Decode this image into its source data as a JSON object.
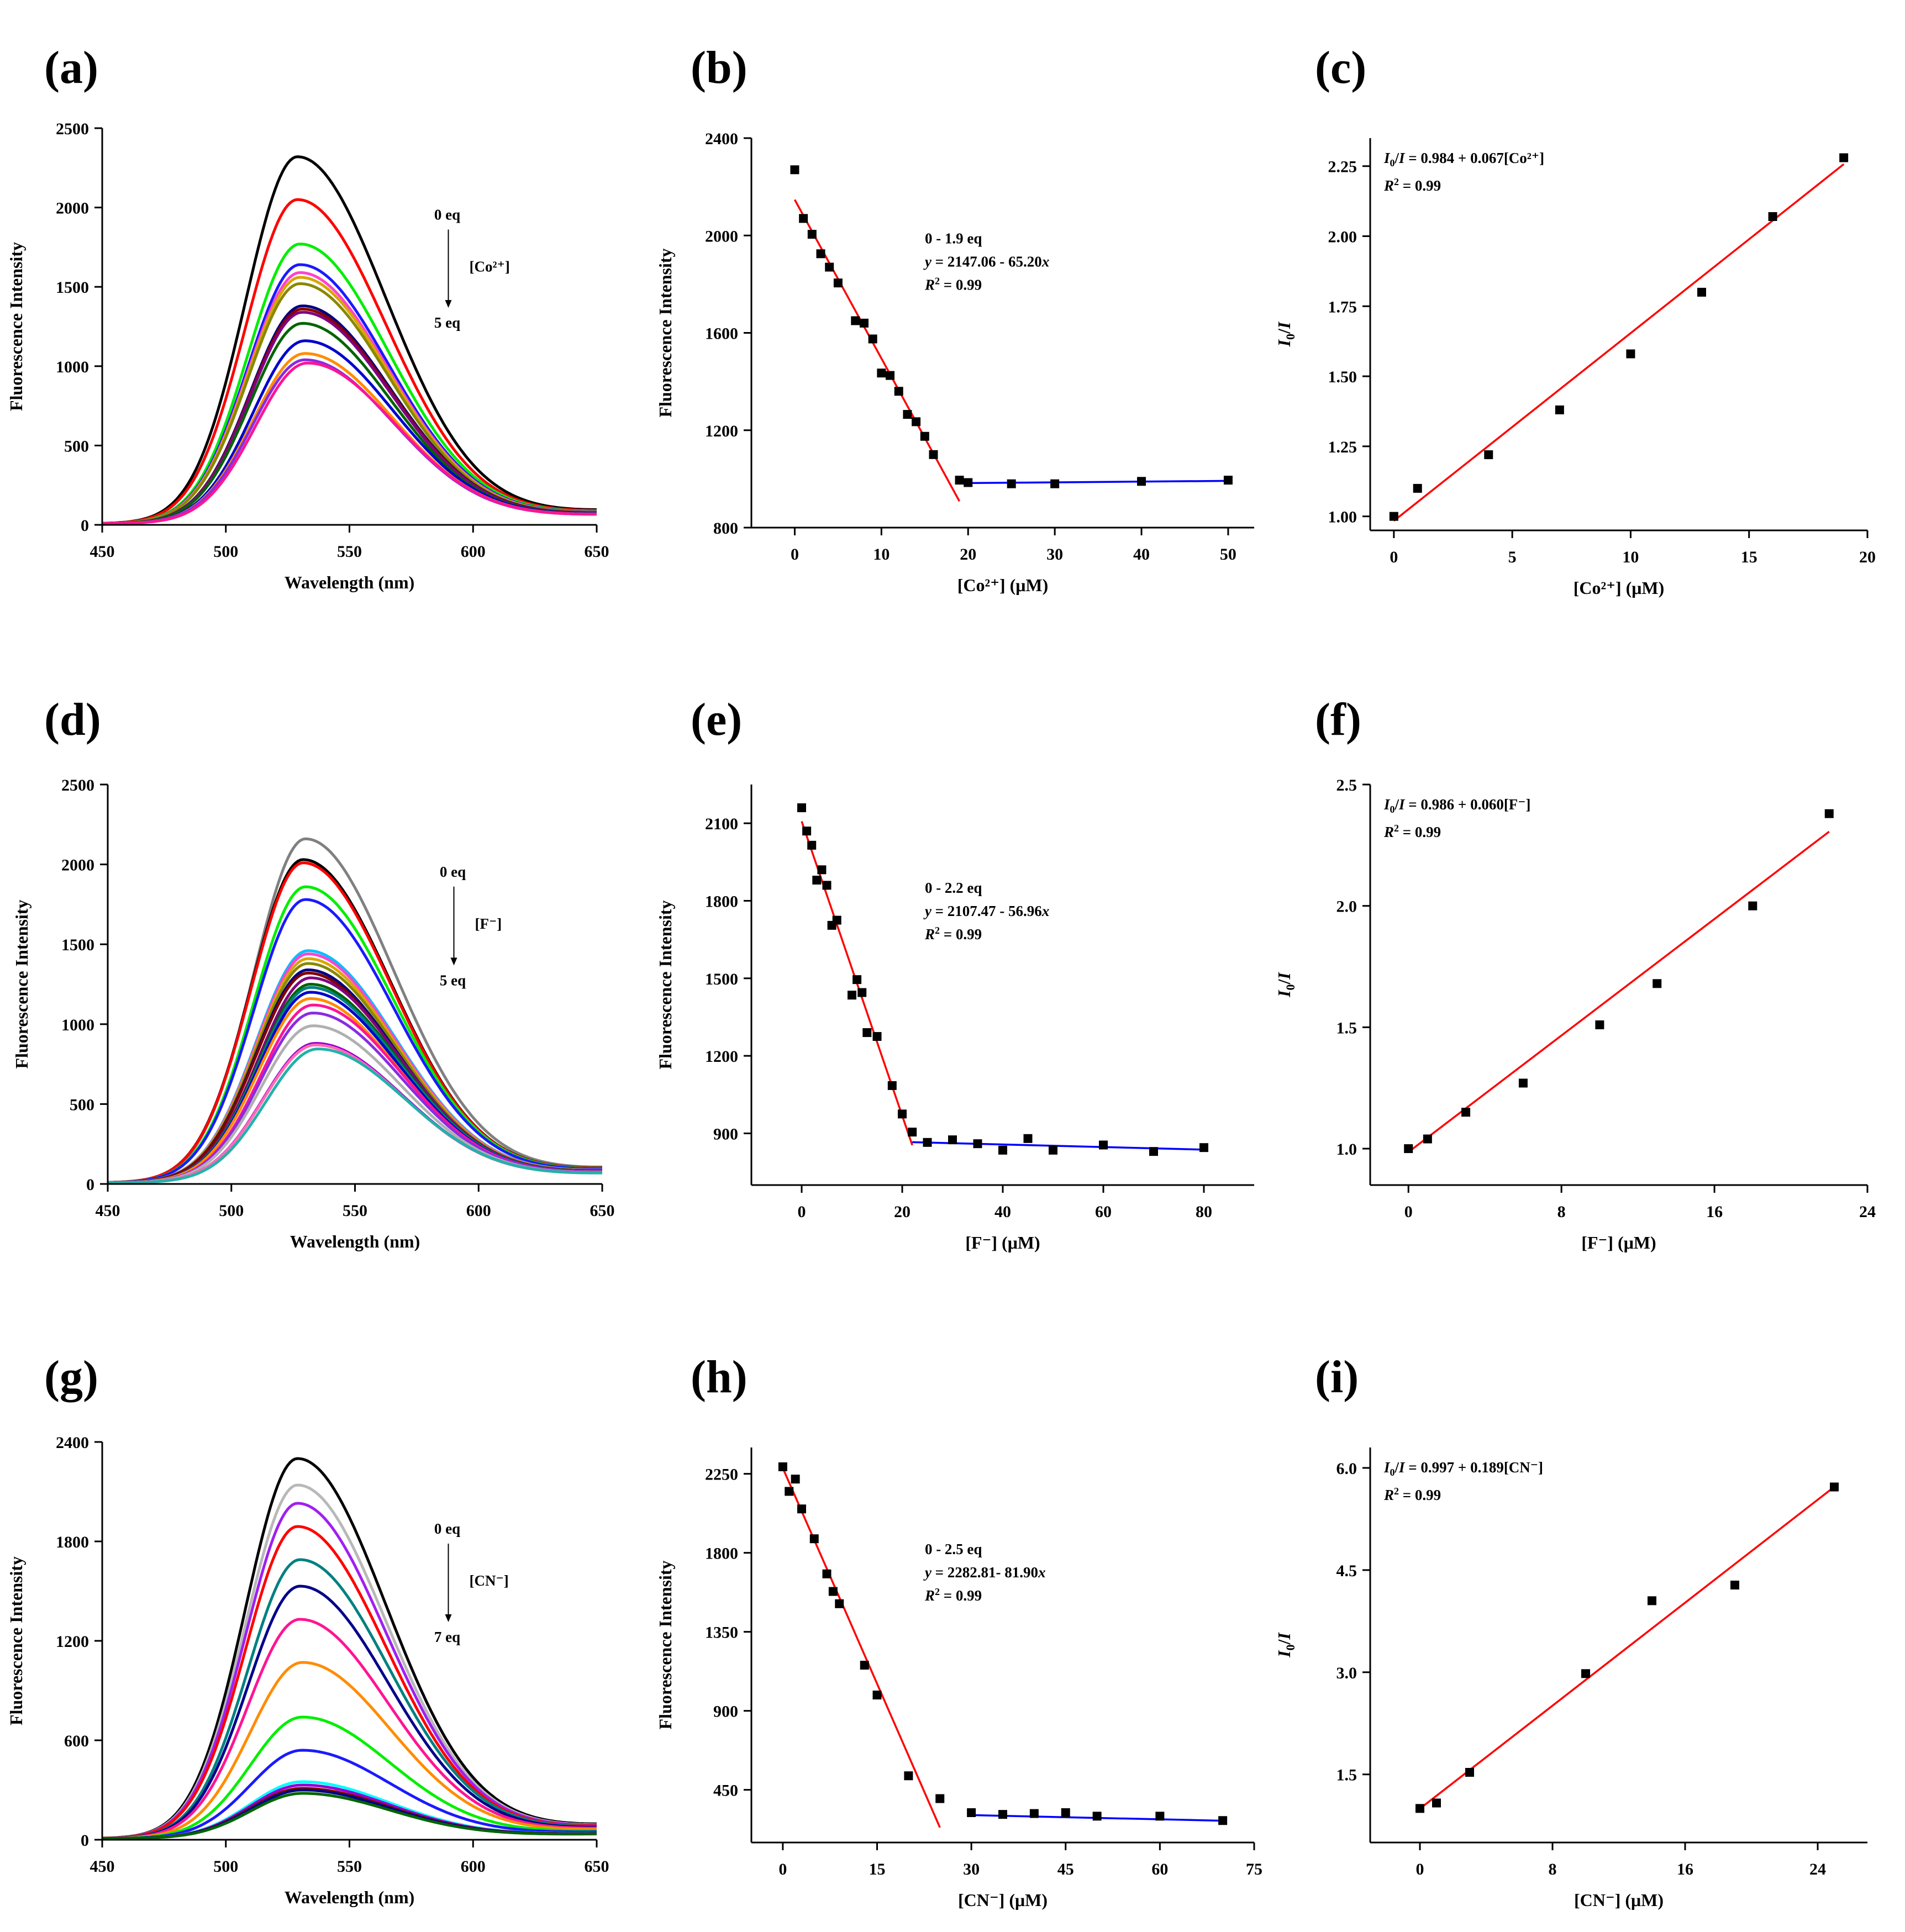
{
  "figure": "Fluorescence titration spectra, calibration plots and Stern-Volmer plots for Co2+, F- and CN-",
  "chart_data": [
    {
      "id": "a",
      "panel_label": "(a)",
      "type": "line",
      "xlabel": "Wavelength (nm)",
      "ylabel": "Fluorescence Intensity",
      "xlim": [
        450,
        650
      ],
      "ylim": [
        0,
        2500
      ],
      "xticks": [
        450,
        500,
        550,
        600,
        650
      ],
      "yticks": [
        0,
        500,
        1000,
        1500,
        2000,
        2500
      ],
      "titration": {
        "start": "0 eq",
        "end": "5 eq",
        "analyte": "[Co²⁺]"
      },
      "series": [
        {
          "name": "0 eq",
          "color": "#000000",
          "peak_nm": 529,
          "peak": 2320,
          "end_value": 80
        },
        {
          "name": "s2",
          "color": "#ff0000",
          "peak_nm": 529,
          "peak": 2050,
          "end_value": 76
        },
        {
          "name": "s3",
          "color": "#00ee00",
          "peak_nm": 530,
          "peak": 1770,
          "end_value": 72
        },
        {
          "name": "s4",
          "color": "#1a1aff",
          "peak_nm": 530,
          "peak": 1640,
          "end_value": 70
        },
        {
          "name": "s5",
          "color": "#ff44cc",
          "peak_nm": 530,
          "peak": 1590,
          "end_value": 68
        },
        {
          "name": "s6",
          "color": "#d9a500",
          "peak_nm": 530,
          "peak": 1560,
          "end_value": 67
        },
        {
          "name": "s7",
          "color": "#888800",
          "peak_nm": 530,
          "peak": 1520,
          "end_value": 66
        },
        {
          "name": "s8",
          "color": "#000080",
          "peak_nm": 531,
          "peak": 1380,
          "end_value": 64
        },
        {
          "name": "s9",
          "color": "#8b0000",
          "peak_nm": 531,
          "peak": 1360,
          "end_value": 63
        },
        {
          "name": "s10",
          "color": "#800080",
          "peak_nm": 531,
          "peak": 1340,
          "end_value": 62
        },
        {
          "name": "s11",
          "color": "#006400",
          "peak_nm": 531,
          "peak": 1270,
          "end_value": 60
        },
        {
          "name": "s12",
          "color": "#0000cd",
          "peak_nm": 532,
          "peak": 1160,
          "end_value": 58
        },
        {
          "name": "s13",
          "color": "#ff8c00",
          "peak_nm": 532,
          "peak": 1080,
          "end_value": 56
        },
        {
          "name": "s14",
          "color": "#8a2be2",
          "peak_nm": 532,
          "peak": 1040,
          "end_value": 55
        },
        {
          "name": "5 eq",
          "color": "#ff1493",
          "peak_nm": 533,
          "peak": 1020,
          "end_value": 54
        }
      ]
    },
    {
      "id": "b",
      "panel_label": "(b)",
      "type": "scatter",
      "xlabel": "[Co²⁺] (μM)",
      "ylabel": "Fluorescence Intensity",
      "xlim": [
        -5,
        53
      ],
      "ylim": [
        800,
        2400
      ],
      "xticks": [
        0,
        10,
        20,
        30,
        40,
        50
      ],
      "yticks": [
        800,
        1200,
        1600,
        2000,
        2400
      ],
      "x": [
        0,
        1,
        2,
        3,
        4,
        5,
        7,
        8,
        9,
        10,
        11,
        12,
        13,
        14,
        15,
        16,
        19,
        20,
        25,
        30,
        40,
        50
      ],
      "y": [
        2270,
        2070,
        2005,
        1925,
        1870,
        1805,
        1650,
        1640,
        1575,
        1435,
        1425,
        1360,
        1265,
        1235,
        1175,
        1100,
        995,
        985,
        980,
        980,
        990,
        995
      ],
      "fits": [
        {
          "color": "#ff0000",
          "intercept": 2147.06,
          "slope": -65.2,
          "x_range": [
            0,
            19
          ]
        },
        {
          "color": "#0000ff",
          "intercept": 977,
          "slope": 0.3,
          "x_range": [
            19,
            50
          ]
        }
      ],
      "annotations": {
        "range": "0 - 1.9 eq",
        "eq_prefix": "y",
        "eq_body": " = 2147.06 - 65.20",
        "eq_var": "x",
        "r2_prefix": "R",
        "r2_sup": "2",
        "r2_value": " = 0.99"
      }
    },
    {
      "id": "c",
      "panel_label": "(c)",
      "type": "scatter",
      "xlabel": "[Co²⁺] (μM)",
      "ylabel": "I0/I",
      "xlim": [
        -1,
        20
      ],
      "ylim": [
        0.95,
        2.35
      ],
      "xticks": [
        0,
        5,
        10,
        15,
        20
      ],
      "yticks": [
        1.0,
        1.25,
        1.5,
        1.75,
        2.0,
        2.25
      ],
      "ytick_labels": [
        "1.00",
        "1.25",
        "1.50",
        "1.75",
        "2.00",
        "2.25"
      ],
      "x": [
        0,
        1,
        4,
        7,
        10,
        13,
        16,
        19
      ],
      "y": [
        1.0,
        1.1,
        1.22,
        1.38,
        1.58,
        1.8,
        2.07,
        2.28
      ],
      "fits": [
        {
          "color": "#ff0000",
          "intercept": 0.984,
          "slope": 0.067,
          "x_range": [
            0,
            19
          ]
        }
      ],
      "annotations": {
        "eq": " = 0.984 + 0.067[Co²⁺]",
        "r2_prefix": "R",
        "r2_sup": "2",
        "r2_value": " = 0.99"
      }
    },
    {
      "id": "d",
      "panel_label": "(d)",
      "type": "line",
      "xlabel": "Wavelength (nm)",
      "ylabel": "Fluorescence Intensity",
      "xlim": [
        450,
        650
      ],
      "ylim": [
        0,
        2500
      ],
      "xticks": [
        450,
        500,
        550,
        600,
        650
      ],
      "yticks": [
        0,
        500,
        1000,
        1500,
        2000,
        2500
      ],
      "titration": {
        "start": "0 eq",
        "end": "5 eq",
        "analyte": "[F⁻]"
      },
      "series": [
        {
          "name": "s1",
          "color": "#808080",
          "peak_nm": 530,
          "peak": 2160,
          "end_value": 90
        },
        {
          "name": "0 eq",
          "color": "#000000",
          "peak_nm": 529,
          "peak": 2030,
          "end_value": 86
        },
        {
          "name": "s3",
          "color": "#ff0000",
          "peak_nm": 529,
          "peak": 2010,
          "end_value": 85
        },
        {
          "name": "s4",
          "color": "#00ee00",
          "peak_nm": 530,
          "peak": 1860,
          "end_value": 82
        },
        {
          "name": "s5",
          "color": "#1a1aff",
          "peak_nm": 530,
          "peak": 1780,
          "end_value": 80
        },
        {
          "name": "s6",
          "color": "#00bfff",
          "peak_nm": 531,
          "peak": 1460,
          "end_value": 74
        },
        {
          "name": "s7",
          "color": "#ff44cc",
          "peak_nm": 531,
          "peak": 1440,
          "end_value": 73
        },
        {
          "name": "s8",
          "color": "#d9a500",
          "peak_nm": 531,
          "peak": 1410,
          "end_value": 72
        },
        {
          "name": "s9",
          "color": "#888800",
          "peak_nm": 531,
          "peak": 1380,
          "end_value": 71
        },
        {
          "name": "s10",
          "color": "#000080",
          "peak_nm": 531,
          "peak": 1340,
          "end_value": 70
        },
        {
          "name": "s11",
          "color": "#800000",
          "peak_nm": 531,
          "peak": 1320,
          "end_value": 69
        },
        {
          "name": "s12",
          "color": "#800080",
          "peak_nm": 532,
          "peak": 1290,
          "end_value": 68
        },
        {
          "name": "s13",
          "color": "#006400",
          "peak_nm": 532,
          "peak": 1250,
          "end_value": 67
        },
        {
          "name": "s14",
          "color": "#008080",
          "peak_nm": 532,
          "peak": 1230,
          "end_value": 66
        },
        {
          "name": "s15",
          "color": "#0000cd",
          "peak_nm": 532,
          "peak": 1200,
          "end_value": 65
        },
        {
          "name": "s16",
          "color": "#ff8c00",
          "peak_nm": 532,
          "peak": 1160,
          "end_value": 64
        },
        {
          "name": "s17",
          "color": "#ff1493",
          "peak_nm": 533,
          "peak": 1120,
          "end_value": 63
        },
        {
          "name": "s18",
          "color": "#8a2be2",
          "peak_nm": 533,
          "peak": 1070,
          "end_value": 62
        },
        {
          "name": "s19",
          "color": "#b0b0b0",
          "peak_nm": 533,
          "peak": 990,
          "end_value": 60
        },
        {
          "name": "s20",
          "color": "#9400d3",
          "peak_nm": 534,
          "peak": 880,
          "end_value": 58
        },
        {
          "name": "s21",
          "color": "#ff69b4",
          "peak_nm": 534,
          "peak": 870,
          "end_value": 57
        },
        {
          "name": "5 eq",
          "color": "#20b2aa",
          "peak_nm": 535,
          "peak": 845,
          "end_value": 56
        }
      ]
    },
    {
      "id": "e",
      "panel_label": "(e)",
      "type": "scatter",
      "xlabel": "[F⁻] (μM)",
      "ylabel": "Fluorescence Intensity",
      "xlim": [
        -10,
        90
      ],
      "ylim": [
        700,
        2250
      ],
      "xticks": [
        0,
        20,
        40,
        60,
        80
      ],
      "yticks": [
        900,
        1200,
        1500,
        1800,
        2100
      ],
      "x": [
        0,
        1,
        2,
        3,
        4,
        5,
        6,
        7,
        10,
        11,
        12,
        13,
        15,
        18,
        20,
        22,
        25,
        30,
        35,
        40,
        45,
        50,
        60,
        70,
        80
      ],
      "y": [
        2160,
        2070,
        2015,
        1880,
        1920,
        1860,
        1705,
        1725,
        1435,
        1495,
        1445,
        1290,
        1275,
        1085,
        975,
        905,
        865,
        875,
        860,
        835,
        880,
        835,
        855,
        830,
        845
      ],
      "fits": [
        {
          "color": "#ff0000",
          "intercept": 2107.47,
          "slope": -56.96,
          "x_range": [
            0,
            22
          ]
        },
        {
          "color": "#0000ff",
          "intercept": 877,
          "slope": -0.5,
          "x_range": [
            22,
            80
          ]
        }
      ],
      "annotations": {
        "range": "0 - 2.2 eq",
        "eq_prefix": "y",
        "eq_body": " = 2107.47 - 56.96",
        "eq_var": "x",
        "r2_prefix": "R",
        "r2_sup": "2",
        "r2_value": " = 0.99"
      }
    },
    {
      "id": "f",
      "panel_label": "(f)",
      "type": "scatter",
      "xlabel": "[F⁻] (μM)",
      "ylabel": "I0/I",
      "xlim": [
        -2,
        24
      ],
      "ylim": [
        0.85,
        2.5
      ],
      "xticks": [
        0,
        8,
        16,
        24
      ],
      "yticks": [
        1.0,
        1.5,
        2.0,
        2.5
      ],
      "ytick_labels": [
        "1.0",
        "1.5",
        "2.0",
        "2.5"
      ],
      "x": [
        0,
        1,
        3,
        6,
        10,
        13,
        18,
        22
      ],
      "y": [
        1.0,
        1.04,
        1.15,
        1.27,
        1.51,
        1.68,
        2.0,
        2.38
      ],
      "fits": [
        {
          "color": "#ff0000",
          "intercept": 0.986,
          "slope": 0.06,
          "x_range": [
            0,
            22
          ]
        }
      ],
      "annotations": {
        "eq": " = 0.986 + 0.060[F⁻]",
        "r2_prefix": "R",
        "r2_sup": "2",
        "r2_value": " = 0.99"
      }
    },
    {
      "id": "g",
      "panel_label": "(g)",
      "type": "line",
      "xlabel": "Wavelength (nm)",
      "ylabel": "Fluorescence Intensity",
      "xlim": [
        450,
        650
      ],
      "ylim": [
        0,
        2400
      ],
      "xticks": [
        450,
        500,
        550,
        600,
        650
      ],
      "yticks": [
        0,
        600,
        1200,
        1800,
        2400
      ],
      "titration": {
        "start": "0 eq",
        "end": "7 eq",
        "analyte": "[CN⁻]"
      },
      "series": [
        {
          "name": "0 eq",
          "color": "#000000",
          "peak_nm": 529,
          "peak": 2300,
          "end_value": 80
        },
        {
          "name": "s2",
          "color": "#b8b8b8",
          "peak_nm": 529,
          "peak": 2140,
          "end_value": 76
        },
        {
          "name": "s3",
          "color": "#a020f0",
          "peak_nm": 529,
          "peak": 2030,
          "end_value": 74
        },
        {
          "name": "s4",
          "color": "#ff0000",
          "peak_nm": 529,
          "peak": 1890,
          "end_value": 70
        },
        {
          "name": "s5",
          "color": "#008080",
          "peak_nm": 530,
          "peak": 1690,
          "end_value": 66
        },
        {
          "name": "s6",
          "color": "#00008b",
          "peak_nm": 530,
          "peak": 1530,
          "end_value": 62
        },
        {
          "name": "s7",
          "color": "#ff1493",
          "peak_nm": 530,
          "peak": 1330,
          "end_value": 58
        },
        {
          "name": "s8",
          "color": "#ff8c00",
          "peak_nm": 531,
          "peak": 1070,
          "end_value": 52
        },
        {
          "name": "s9",
          "color": "#00ee00",
          "peak_nm": 531,
          "peak": 740,
          "end_value": 44
        },
        {
          "name": "s10",
          "color": "#1a1aff",
          "peak_nm": 531,
          "peak": 540,
          "end_value": 38
        },
        {
          "name": "s11",
          "color": "#00ffff",
          "peak_nm": 531,
          "peak": 350,
          "end_value": 30
        },
        {
          "name": "s12",
          "color": "#9400d3",
          "peak_nm": 531,
          "peak": 330,
          "end_value": 29
        },
        {
          "name": "s13",
          "color": "#8b0000",
          "peak_nm": 531,
          "peak": 310,
          "end_value": 28
        },
        {
          "name": "s14",
          "color": "#000080",
          "peak_nm": 531,
          "peak": 300,
          "end_value": 27
        },
        {
          "name": "7 eq",
          "color": "#006400",
          "peak_nm": 531,
          "peak": 280,
          "end_value": 26
        }
      ]
    },
    {
      "id": "h",
      "panel_label": "(h)",
      "type": "scatter",
      "xlabel": "[CN⁻] (μM)",
      "ylabel": "Fluorescence Intensity",
      "xlim": [
        -5,
        75
      ],
      "ylim": [
        150,
        2400
      ],
      "xticks": [
        0,
        15,
        30,
        45,
        60,
        75
      ],
      "yticks": [
        450,
        900,
        1350,
        1800,
        2250
      ],
      "x": [
        0,
        1,
        2,
        3,
        5,
        7,
        8,
        9,
        13,
        15,
        20,
        25,
        30,
        35,
        40,
        45,
        50,
        60,
        70
      ],
      "y": [
        2290,
        2150,
        2220,
        2050,
        1880,
        1680,
        1580,
        1510,
        1160,
        990,
        530,
        400,
        320,
        310,
        315,
        320,
        300,
        300,
        275
      ],
      "fits": [
        {
          "color": "#ff0000",
          "intercept": 2282.81,
          "slope": -81.9,
          "x_range": [
            0,
            25
          ]
        },
        {
          "color": "#0000ff",
          "intercept": 330,
          "slope": -0.8,
          "x_range": [
            30,
            70
          ]
        }
      ],
      "annotations": {
        "range": "0 - 2.5 eq",
        "eq_prefix": "y",
        "eq_body": " = 2282.81- 81.90",
        "eq_var": "x",
        "r2_prefix": "R",
        "r2_sup": "2",
        "r2_value": " = 0.99"
      }
    },
    {
      "id": "i",
      "panel_label": "(i)",
      "type": "scatter",
      "xlabel": "[CN⁻] (μM)",
      "ylabel": "I0/I",
      "xlim": [
        -3,
        27
      ],
      "ylim": [
        0.5,
        6.3
      ],
      "xticks": [
        0,
        8,
        16,
        24
      ],
      "yticks": [
        1.5,
        3.0,
        4.5,
        6.0
      ],
      "ytick_labels": [
        "1.5",
        "3.0",
        "4.5",
        "6.0"
      ],
      "x": [
        0,
        1,
        3,
        10,
        14,
        19,
        25
      ],
      "y": [
        1.0,
        1.08,
        1.53,
        2.98,
        4.05,
        4.28,
        5.72
      ],
      "fits": [
        {
          "color": "#ff0000",
          "intercept": 0.997,
          "slope": 0.189,
          "x_range": [
            0,
            25
          ]
        }
      ],
      "annotations": {
        "eq": " = 0.997 + 0.189[CN⁻]",
        "r2_prefix": "R",
        "r2_sup": "2",
        "r2_value": " = 0.99"
      }
    }
  ]
}
